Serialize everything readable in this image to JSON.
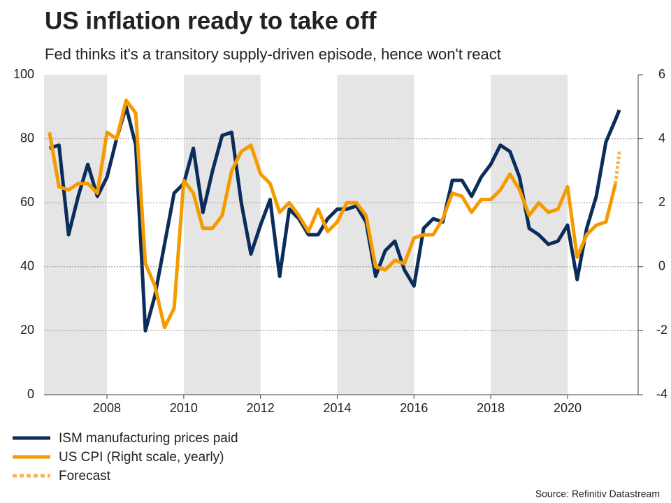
{
  "chart_data": {
    "type": "line",
    "title": "US inflation ready to take off",
    "subtitle": "Fed thinks it's a transitory supply-driven episode, hence won't react",
    "source": "Source: Refinitiv Datastream",
    "x": [
      2006.5,
      2006.75,
      2007,
      2007.25,
      2007.5,
      2007.75,
      2008,
      2008.25,
      2008.5,
      2008.75,
      2009,
      2009.25,
      2009.5,
      2009.75,
      2010,
      2010.25,
      2010.5,
      2010.75,
      2011,
      2011.25,
      2011.5,
      2011.75,
      2012,
      2012.25,
      2012.5,
      2012.75,
      2013,
      2013.25,
      2013.5,
      2013.75,
      2014,
      2014.25,
      2014.5,
      2014.75,
      2015,
      2015.25,
      2015.5,
      2015.75,
      2016,
      2016.25,
      2016.5,
      2016.75,
      2017,
      2017.25,
      2017.5,
      2017.75,
      2018,
      2018.25,
      2018.5,
      2018.75,
      2019,
      2019.25,
      2019.5,
      2019.75,
      2020,
      2020.25,
      2020.5,
      2020.75,
      2021,
      2021.25,
      2021.35
    ],
    "series": [
      {
        "name": "ISM manufacturing prices paid",
        "color": "#0b2d5b",
        "dashed": false,
        "values": [
          77,
          78,
          50,
          62,
          72,
          62,
          68,
          80,
          90,
          78,
          20,
          31,
          47,
          63,
          66,
          77,
          57,
          70,
          81,
          82,
          60,
          44,
          53,
          61,
          37,
          58,
          55,
          50,
          50,
          55,
          58,
          58,
          59,
          54,
          37,
          45,
          48,
          39,
          34,
          52,
          55,
          54,
          67,
          67,
          62,
          68,
          72,
          78,
          76,
          68,
          52,
          50,
          47,
          48,
          53,
          36,
          52,
          62,
          79,
          86,
          89
        ]
      },
      {
        "name": "US CPI (Right scale, yearly)",
        "color": "#f59b00",
        "dashed": false,
        "axis": "y2",
        "values": [
          4.2,
          2.5,
          2.4,
          2.6,
          2.6,
          2.3,
          4.2,
          4.0,
          5.2,
          4.8,
          0.1,
          -0.6,
          -1.9,
          -1.3,
          2.7,
          2.3,
          1.2,
          1.2,
          1.6,
          3.0,
          3.6,
          3.8,
          2.9,
          2.6,
          1.7,
          2.0,
          1.6,
          1.1,
          1.8,
          1.1,
          1.4,
          2.0,
          2.0,
          1.6,
          0.0,
          -0.1,
          0.2,
          0.1,
          0.9,
          1.0,
          1.0,
          1.5,
          2.3,
          2.2,
          1.7,
          2.1,
          2.1,
          2.4,
          2.9,
          2.4,
          1.6,
          2.0,
          1.7,
          1.8,
          2.5,
          0.3,
          1.0,
          1.3,
          1.4,
          2.6,
          null
        ]
      },
      {
        "name": "Forecast",
        "color": "#f9b44a",
        "dashed": true,
        "axis": "y2",
        "values": [
          null,
          null,
          null,
          null,
          null,
          null,
          null,
          null,
          null,
          null,
          null,
          null,
          null,
          null,
          null,
          null,
          null,
          null,
          null,
          null,
          null,
          null,
          null,
          null,
          null,
          null,
          null,
          null,
          null,
          null,
          null,
          null,
          null,
          null,
          null,
          null,
          null,
          null,
          null,
          null,
          null,
          null,
          null,
          null,
          null,
          null,
          null,
          null,
          null,
          null,
          null,
          null,
          null,
          null,
          null,
          null,
          null,
          null,
          null,
          2.6,
          3.6
        ]
      }
    ],
    "xlim": [
      2006.36,
      2021.84
    ],
    "xticks": [
      2008,
      2010,
      2012,
      2014,
      2016,
      2018,
      2020
    ],
    "ylim": [
      0,
      100
    ],
    "yticks": [
      0,
      20,
      40,
      60,
      80,
      100
    ],
    "y2lim": [
      -4,
      6
    ],
    "y2ticks": [
      -4,
      -2,
      0,
      2,
      4,
      6
    ],
    "grid": true
  }
}
